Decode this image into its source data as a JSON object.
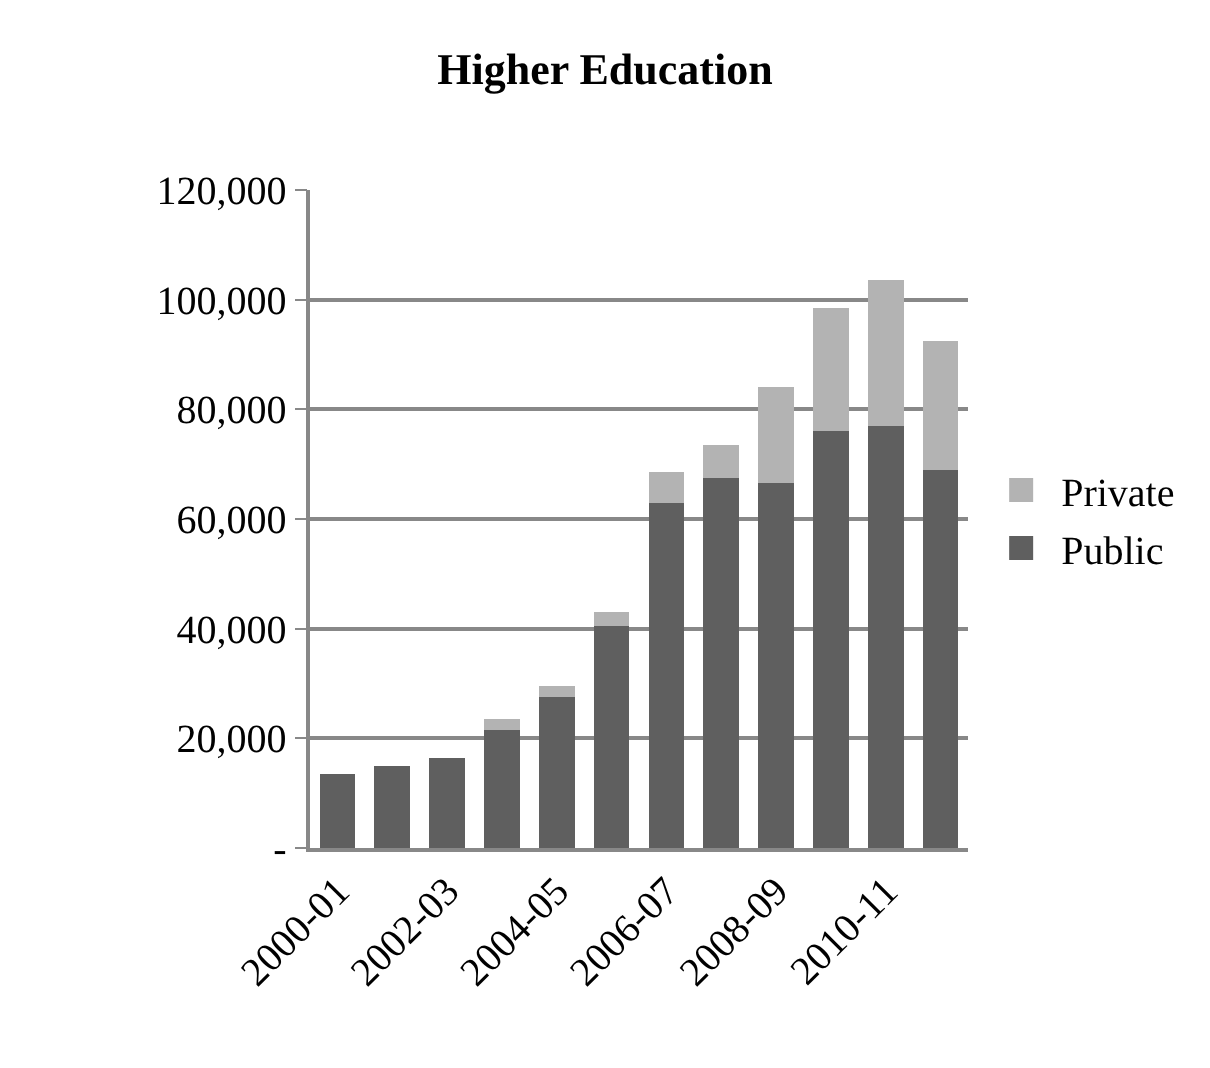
{
  "chart_data": {
    "type": "bar",
    "title": "Higher Education",
    "stacked": true,
    "categories": [
      "2000-01",
      null,
      "2002-03",
      null,
      "2004-05",
      null,
      "2006-07",
      null,
      "2008-09",
      null,
      "2010-11",
      null
    ],
    "series": [
      {
        "name": "Public",
        "color": "#5f5f5f",
        "values": [
          13500,
          15000,
          16500,
          21500,
          27500,
          40500,
          63000,
          67500,
          66500,
          76000,
          77000,
          69000
        ]
      },
      {
        "name": "Private",
        "color": "#b3b3b3",
        "values": [
          0,
          0,
          0,
          2000,
          2000,
          2500,
          5500,
          6000,
          17500,
          22500,
          26500,
          23500
        ]
      }
    ],
    "ylim": [
      0,
      120000
    ],
    "yticks": [
      {
        "value": 0,
        "label": "-"
      },
      {
        "value": 20000,
        "label": "20,000"
      },
      {
        "value": 40000,
        "label": "40,000"
      },
      {
        "value": 60000,
        "label": "60,000"
      },
      {
        "value": 80000,
        "label": "80,000"
      },
      {
        "value": 100000,
        "label": "100,000"
      },
      {
        "value": 120000,
        "label": "120,000"
      }
    ],
    "grid": "y",
    "legend": "right"
  }
}
